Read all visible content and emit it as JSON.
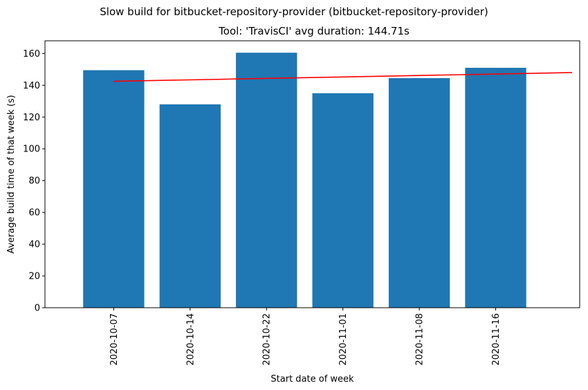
{
  "chart_data": {
    "type": "bar",
    "title": "Slow build for bitbucket-repository-provider (bitbucket-repository-provider)",
    "subtitle": "Tool: 'TravisCI' avg duration: 144.71s",
    "xlabel": "Start date of week",
    "ylabel": "Average build time of that week (s)",
    "categories": [
      "2020-10-07",
      "2020-10-14",
      "2020-10-22",
      "2020-11-01",
      "2020-11-08",
      "2020-11-16"
    ],
    "values": [
      149.5,
      128,
      160.5,
      135,
      144.5,
      151
    ],
    "ylim": [
      0,
      168
    ],
    "yticks": [
      0,
      20,
      40,
      60,
      80,
      100,
      120,
      140,
      160
    ],
    "trendline": {
      "start": [
        0,
        142.5
      ],
      "end": [
        6,
        148
      ]
    },
    "bar_color": "#1f77b4",
    "trend_color": "#ff0000",
    "grid": false,
    "legend": "none"
  }
}
